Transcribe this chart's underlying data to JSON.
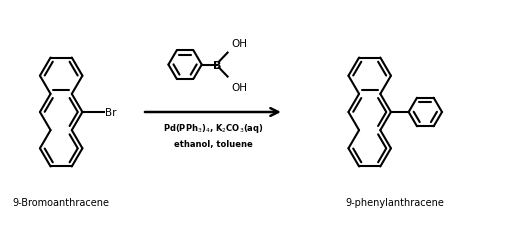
{
  "background_color": "#ffffff",
  "line_color": "#000000",
  "line_width": 1.5,
  "reagent_line1": "Pd(PPh$_3$)$_4$, K$_2$CO$_3$(aq)",
  "reagent_line2": "ethanol, toluene",
  "label_left": "9-Bromoanthracene",
  "label_right": "9-phenylanthracene",
  "figsize": [
    5.12,
    2.26
  ],
  "dpi": 100,
  "xlim": [
    0,
    10
  ],
  "ylim": [
    0,
    4.5
  ]
}
